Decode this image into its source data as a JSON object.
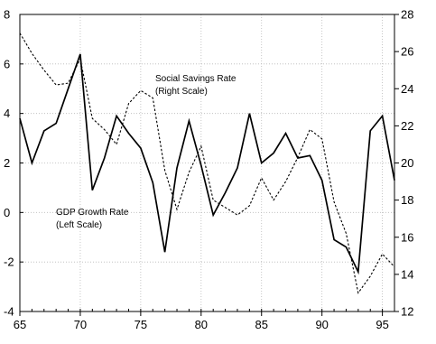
{
  "chart_data": {
    "type": "line",
    "x": [
      1965,
      1966,
      1967,
      1968,
      1969,
      1970,
      1971,
      1972,
      1973,
      1974,
      1975,
      1976,
      1977,
      1978,
      1979,
      1980,
      1981,
      1982,
      1983,
      1984,
      1985,
      1986,
      1987,
      1988,
      1989,
      1990,
      1991,
      1992,
      1993,
      1994,
      1995,
      1996
    ],
    "x_tick_labels": [
      "65",
      "70",
      "75",
      "80",
      "85",
      "90",
      "95"
    ],
    "x_ticks": [
      1965,
      1970,
      1975,
      1980,
      1985,
      1990,
      1995
    ],
    "xlim": [
      1965,
      1996
    ],
    "left_axis": {
      "ylim": [
        -4,
        8
      ],
      "ticks": [
        -4,
        -2,
        0,
        2,
        4,
        6,
        8
      ],
      "tick_labels": [
        "-4",
        "-2",
        "0",
        "2",
        "4",
        "6",
        "8"
      ]
    },
    "right_axis": {
      "ylim": [
        12,
        28
      ],
      "ticks": [
        12,
        14,
        16,
        18,
        20,
        22,
        24,
        26,
        28
      ],
      "tick_labels": [
        "12",
        "14",
        "16",
        "18",
        "20",
        "22",
        "24",
        "26",
        "28"
      ]
    },
    "series": [
      {
        "axis": "left",
        "style": "solid",
        "color": "#000000",
        "values": [
          3.8,
          2.0,
          3.3,
          3.6,
          5.0,
          6.4,
          0.9,
          2.2,
          3.9,
          3.2,
          2.6,
          1.2,
          -1.6,
          1.8,
          3.7,
          1.9,
          -0.1,
          0.8,
          1.8,
          4.0,
          2.0,
          2.4,
          3.2,
          2.2,
          2.3,
          1.3,
          -1.1,
          -1.4,
          -2.4,
          3.3,
          3.9,
          1.3
        ]
      },
      {
        "axis": "right",
        "style": "dotted",
        "color": "#000000",
        "values": [
          27.0,
          25.9,
          25.0,
          24.2,
          24.3,
          25.6,
          22.4,
          21.8,
          21.0,
          23.2,
          23.9,
          23.5,
          19.6,
          17.5,
          19.5,
          20.9,
          18.0,
          17.6,
          17.2,
          17.7,
          19.2,
          18.0,
          19.0,
          20.3,
          21.8,
          21.3,
          17.9,
          16.2,
          13.0,
          13.9,
          15.1,
          14.4
        ]
      }
    ],
    "annotations": [
      {
        "lines": [
          "Social Savings Rate",
          "(Right Scale)"
        ]
      },
      {
        "lines": [
          "GDP Growth Rate",
          "(Left Scale)"
        ]
      }
    ],
    "grid": true
  }
}
